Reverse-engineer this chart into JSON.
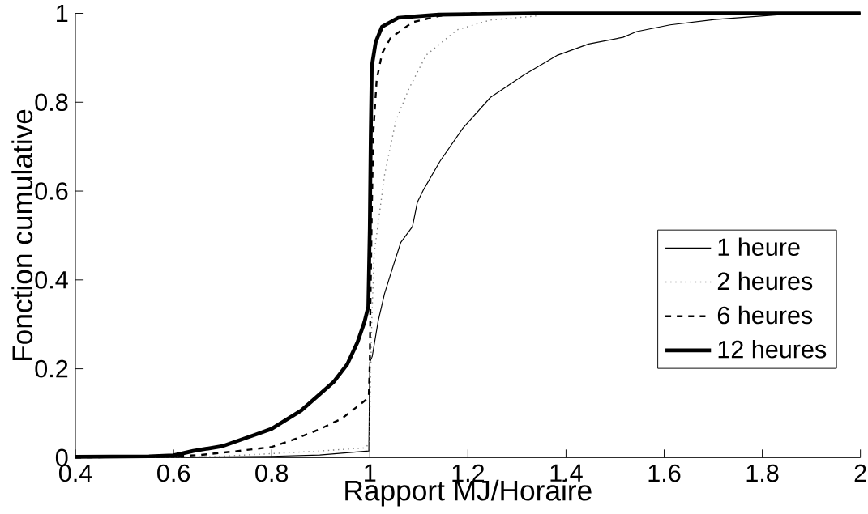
{
  "chart_data": {
    "type": "line",
    "xlabel": "Rapport MJ/Horaire",
    "ylabel": "Fonction cumulative",
    "xlim": [
      0.4,
      2
    ],
    "ylim": [
      0,
      1
    ],
    "xticks": [
      0.4,
      0.6,
      0.8,
      1,
      1.2,
      1.4,
      1.6,
      1.8,
      2
    ],
    "yticks": [
      0,
      0.2,
      0.4,
      0.6,
      0.8,
      1
    ],
    "grid": false,
    "legend": "bottom right",
    "series": [
      {
        "name": "1 heure",
        "color": "#000000",
        "line_style": "solid",
        "x": [
          0.4,
          0.6,
          0.8,
          0.898,
          0.998,
          1.0,
          1.005,
          1.017,
          1.03,
          1.047,
          1.063,
          1.087,
          1.097,
          1.11,
          1.143,
          1.19,
          1.246,
          1.315,
          1.383,
          1.446,
          1.516,
          1.544,
          1.612,
          1.703,
          1.836,
          1.9,
          2.0
        ],
        "values": [
          0,
          0.001,
          0.003,
          0.006,
          0.015,
          0.215,
          0.228,
          0.307,
          0.369,
          0.429,
          0.484,
          0.52,
          0.575,
          0.604,
          0.667,
          0.742,
          0.811,
          0.862,
          0.906,
          0.931,
          0.946,
          0.959,
          0.974,
          0.986,
          0.997,
          1,
          1
        ]
      },
      {
        "name": "2 heures",
        "color": "#808080",
        "line_style": "dotted",
        "x": [
          0.4,
          0.677,
          0.8,
          0.898,
          0.992,
          0.998,
          1.0,
          1.004,
          1.009,
          1.03,
          1.053,
          1.08,
          1.115,
          1.178,
          1.246,
          1.339
        ],
        "values": [
          0,
          0.002,
          0.009,
          0.015,
          0.022,
          0.033,
          0.095,
          0.307,
          0.46,
          0.636,
          0.758,
          0.831,
          0.906,
          0.963,
          0.985,
          0.994
        ]
      },
      {
        "name": "6 heures",
        "color": "#000000",
        "line_style": "dashed",
        "x": [
          0.4,
          0.6,
          0.655,
          0.732,
          0.8,
          0.843,
          0.898,
          0.943,
          0.964,
          0.992,
          0.998,
          1.0,
          1.001,
          1.004,
          1.007,
          1.014,
          1.025,
          1.042,
          1.087,
          1.141,
          1.2,
          2.0
        ],
        "values": [
          0,
          0.003,
          0.006,
          0.015,
          0.024,
          0.04,
          0.064,
          0.088,
          0.106,
          0.13,
          0.14,
          0.215,
          0.32,
          0.545,
          0.727,
          0.85,
          0.91,
          0.944,
          0.98,
          0.994,
          1,
          1
        ]
      },
      {
        "name": "12 heures",
        "color": "#000000",
        "line_style": "solid",
        "x": [
          0.4,
          0.55,
          0.6,
          0.64,
          0.7,
          0.765,
          0.8,
          0.86,
          0.898,
          0.926,
          0.954,
          0.975,
          0.989,
          0.997,
          1.0,
          1.002,
          1.004,
          1.012,
          1.025,
          1.058,
          1.141,
          1.34,
          2.0
        ],
        "values": [
          0.002,
          0.003,
          0.005,
          0.015,
          0.026,
          0.051,
          0.065,
          0.106,
          0.143,
          0.17,
          0.21,
          0.26,
          0.305,
          0.34,
          0.515,
          0.727,
          0.88,
          0.935,
          0.97,
          0.99,
          0.997,
          1,
          1
        ]
      }
    ]
  }
}
